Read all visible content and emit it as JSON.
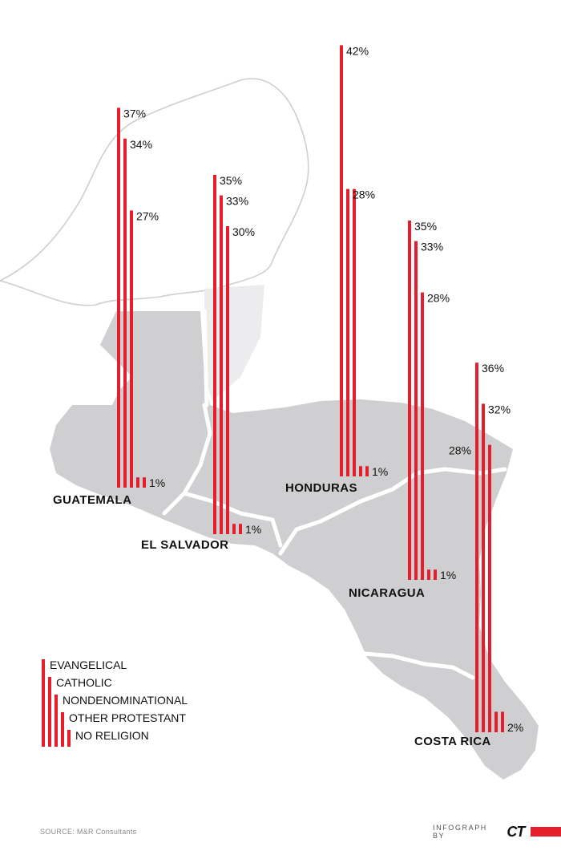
{
  "chart_data": {
    "type": "bar",
    "title": "",
    "series_names": [
      "EVANGELICAL",
      "CATHOLIC",
      "NONDENOMINATIONAL",
      "OTHER PROTESTANT",
      "NO RELIGION"
    ],
    "groups": [
      {
        "country": "GUATEMALA",
        "labels": [
          "37%",
          "34%",
          "27%",
          "",
          "1%"
        ],
        "values": [
          37,
          34,
          27,
          1,
          1
        ]
      },
      {
        "country": "EL SALVADOR",
        "labels": [
          "35%",
          "33%",
          "30%",
          "",
          "1%"
        ],
        "values": [
          35,
          33,
          30,
          1,
          1
        ]
      },
      {
        "country": "HONDURAS",
        "labels": [
          "42%",
          "28%",
          "",
          "",
          "1%"
        ],
        "values": [
          42,
          28,
          28,
          1,
          1
        ]
      },
      {
        "country": "NICARAGUA",
        "labels": [
          "35%",
          "33%",
          "28%",
          "",
          "1%"
        ],
        "values": [
          35,
          33,
          28,
          1,
          1
        ]
      },
      {
        "country": "COSTA RICA",
        "labels": [
          "36%",
          "32%",
          "28%",
          "",
          "2%"
        ],
        "values": [
          36,
          32,
          28,
          2,
          2
        ]
      }
    ],
    "colors": {
      "bar": "#e41e2b",
      "land": "#cfcfd1"
    }
  },
  "footer": {
    "source": "SOURCE: M&R Consultants",
    "credit_text": "INFOGRAPH BY",
    "credit_logo": "CT"
  }
}
